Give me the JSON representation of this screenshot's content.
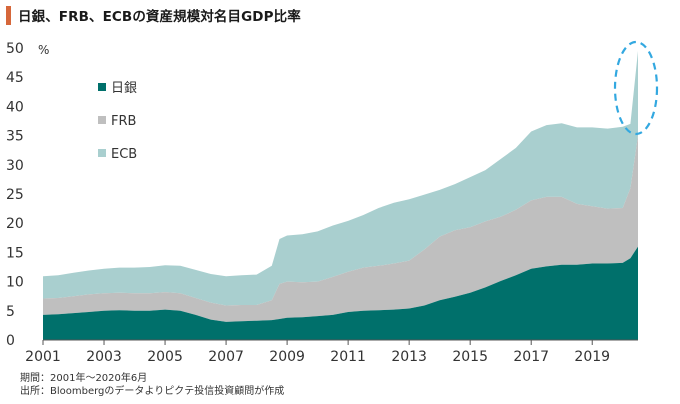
{
  "title": "日銀、FRB、ECBの資産規模対名目GDP比率",
  "unit_label": "%",
  "footnote_period": "期間：2001年～2020年6月",
  "footnote_source": "出所：Bloombergのデータよりピクテ投信投資顧問が作成",
  "colors": {
    "title_accent": "#d6673a",
    "boj": "#00706b",
    "fed": "#bfbfbf",
    "ecb": "#a9cfcf",
    "highlight": "#33a8e0"
  },
  "chart_data": {
    "type": "area",
    "stacked": true,
    "title": "日銀、FRB、ECBの資産規模対名目GDP比率",
    "ylabel": "%",
    "ylim": [
      0,
      50
    ],
    "yticks": [
      0,
      5,
      10,
      15,
      20,
      25,
      30,
      35,
      40,
      45,
      50
    ],
    "xlim": [
      2001.0,
      2020.5
    ],
    "xticks": [
      "2001",
      "2003",
      "2005",
      "2007",
      "2009",
      "2011",
      "2013",
      "2015",
      "2017",
      "2019"
    ],
    "legend_position": "top-left",
    "x": [
      2001.0,
      2001.5,
      2002.0,
      2002.5,
      2003.0,
      2003.5,
      2004.0,
      2004.5,
      2005.0,
      2005.5,
      2006.0,
      2006.5,
      2007.0,
      2007.5,
      2008.0,
      2008.5,
      2008.75,
      2009.0,
      2009.5,
      2010.0,
      2010.5,
      2011.0,
      2011.5,
      2012.0,
      2012.5,
      2013.0,
      2013.5,
      2014.0,
      2014.5,
      2015.0,
      2015.5,
      2016.0,
      2016.5,
      2017.0,
      2017.5,
      2018.0,
      2018.5,
      2019.0,
      2019.5,
      2020.0,
      2020.25,
      2020.5
    ],
    "series": [
      {
        "name": "日銀",
        "values": [
          4.3,
          4.4,
          4.6,
          4.8,
          5.0,
          5.1,
          5.0,
          5.0,
          5.2,
          5.0,
          4.3,
          3.5,
          3.1,
          3.2,
          3.3,
          3.4,
          3.6,
          3.8,
          3.9,
          4.1,
          4.3,
          4.8,
          5.0,
          5.1,
          5.2,
          5.4,
          5.9,
          6.8,
          7.4,
          8.1,
          9.0,
          10.1,
          11.1,
          12.2,
          12.6,
          12.9,
          12.9,
          13.1,
          13.1,
          13.2,
          14.0,
          16.0
        ]
      },
      {
        "name": "FRB",
        "values": [
          2.8,
          2.8,
          2.9,
          3.0,
          3.0,
          3.0,
          3.0,
          3.0,
          3.0,
          3.0,
          2.9,
          2.9,
          2.8,
          2.8,
          2.7,
          3.4,
          6.0,
          6.2,
          6.0,
          5.9,
          6.5,
          6.9,
          7.4,
          7.6,
          7.9,
          8.2,
          9.6,
          10.9,
          11.4,
          11.2,
          11.3,
          11.0,
          11.2,
          11.7,
          11.9,
          11.6,
          10.4,
          9.8,
          9.4,
          9.4,
          12.0,
          19.0
        ]
      },
      {
        "name": "ECB",
        "values": [
          3.8,
          3.9,
          4.0,
          4.1,
          4.2,
          4.3,
          4.4,
          4.5,
          4.6,
          4.7,
          4.8,
          4.9,
          5.0,
          5.1,
          5.2,
          5.9,
          7.7,
          7.9,
          8.2,
          8.6,
          8.8,
          8.7,
          9.0,
          9.9,
          10.4,
          10.5,
          9.4,
          8.0,
          7.9,
          8.6,
          8.8,
          9.9,
          10.6,
          11.8,
          12.3,
          12.6,
          13.1,
          13.5,
          13.7,
          13.9,
          11.0,
          14.5
        ]
      }
    ]
  }
}
